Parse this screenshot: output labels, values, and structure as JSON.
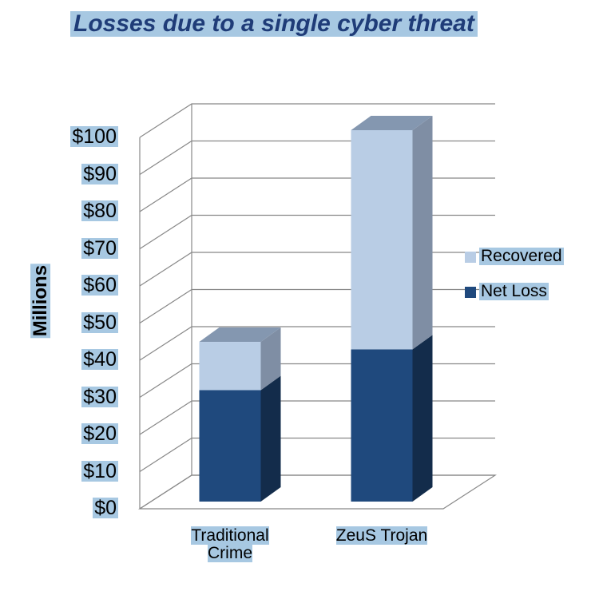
{
  "chart_data": {
    "type": "bar3d_stacked",
    "title": "Losses due to a single cyber threat",
    "y_label": "Millions",
    "categories": [
      "Traditional Crime",
      "ZeuS Trojan"
    ],
    "series": [
      {
        "name": "Net Loss",
        "color": "#1f497d",
        "values": [
          30,
          41
        ]
      },
      {
        "name": "Recovered",
        "color": "#b9cde5",
        "values": [
          13,
          59
        ]
      }
    ],
    "ylim": [
      0,
      100
    ],
    "yticks": [
      {
        "value": 0,
        "label": "$0"
      },
      {
        "value": 10,
        "label": "$10"
      },
      {
        "value": 20,
        "label": "$20"
      },
      {
        "value": 30,
        "label": "$30"
      },
      {
        "value": 40,
        "label": "$40"
      },
      {
        "value": 50,
        "label": "$50"
      },
      {
        "value": 60,
        "label": "$60"
      },
      {
        "value": 70,
        "label": "$70"
      },
      {
        "value": 80,
        "label": "$80"
      },
      {
        "value": 90,
        "label": "$90"
      },
      {
        "value": 100,
        "label": "$100"
      }
    ],
    "grid": true,
    "legend": "right"
  }
}
